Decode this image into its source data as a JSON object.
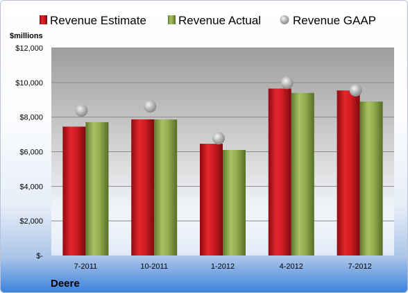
{
  "chart_data": {
    "type": "bar",
    "ylabel": "$millions",
    "categories": [
      "7-2011",
      "10-2011",
      "1-2012",
      "4-2012",
      "7-2012"
    ],
    "series": [
      {
        "name": "Revenue Estimate",
        "kind": "bar",
        "color": "#c8161d",
        "values": [
          7450,
          7870,
          6460,
          9650,
          9540
        ]
      },
      {
        "name": "Revenue Actual",
        "kind": "bar",
        "color": "#8faa4c",
        "values": [
          7710,
          7860,
          6100,
          9400,
          8900
        ]
      },
      {
        "name": "Revenue GAAP",
        "kind": "marker",
        "color": "#b8b8b8",
        "values": [
          8380,
          8620,
          6780,
          9980,
          9550
        ]
      }
    ],
    "ylim": [
      0,
      12000
    ],
    "yticks": [
      0,
      2000,
      4000,
      6000,
      8000,
      10000,
      12000
    ],
    "ytick_labels": [
      "$-",
      "$2,000",
      "$4,000",
      "$6,000",
      "$8,000",
      "$10,000",
      "$12,000"
    ],
    "grid": true,
    "legend_position": "top",
    "footer": "Deere"
  }
}
